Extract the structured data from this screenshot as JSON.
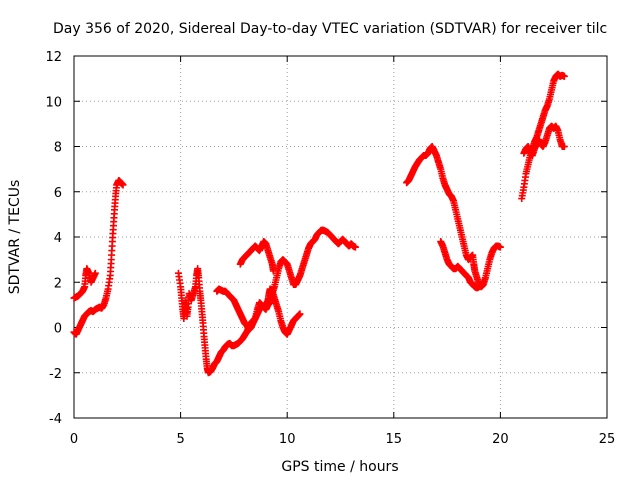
{
  "chart_data": {
    "type": "scatter",
    "title": "Day 356 of 2020, Sidereal Day-to-day VTEC variation (SDTVAR) for receiver tilc",
    "xlabel": "GPS time / hours",
    "ylabel": "SDTVAR / TECUs",
    "xlim": [
      0,
      25
    ],
    "ylim": [
      -4,
      12
    ],
    "xticks": [
      "0",
      "5",
      "10",
      "15",
      "20",
      "25"
    ],
    "yticks": [
      "-4",
      "-2",
      "0",
      "2",
      "4",
      "6",
      "8",
      "10",
      "12"
    ],
    "grid": true,
    "marker": "+",
    "color": "#ff0000",
    "series": [
      {
        "points": [
          [
            0.0,
            1.3
          ],
          [
            0.1,
            1.35
          ],
          [
            0.2,
            1.4
          ],
          [
            0.3,
            1.5
          ],
          [
            0.4,
            1.6
          ],
          [
            0.5,
            1.8
          ],
          [
            0.55,
            2.3
          ],
          [
            0.6,
            2.6
          ],
          [
            0.7,
            2.4
          ],
          [
            0.8,
            2.0
          ],
          [
            0.9,
            2.2
          ],
          [
            1.0,
            2.4
          ]
        ]
      },
      {
        "points": [
          [
            0.0,
            -0.2
          ],
          [
            0.1,
            -0.3
          ],
          [
            0.2,
            -0.1
          ],
          [
            0.3,
            0.1
          ],
          [
            0.4,
            0.3
          ],
          [
            0.5,
            0.5
          ],
          [
            0.6,
            0.6
          ],
          [
            0.7,
            0.7
          ],
          [
            0.8,
            0.75
          ],
          [
            0.9,
            0.7
          ],
          [
            1.0,
            0.8
          ],
          [
            1.1,
            0.85
          ],
          [
            1.2,
            0.9
          ],
          [
            1.3,
            0.85
          ],
          [
            1.4,
            1.0
          ],
          [
            1.5,
            1.3
          ],
          [
            1.6,
            1.7
          ],
          [
            1.7,
            2.3
          ],
          [
            1.75,
            3.0
          ],
          [
            1.8,
            3.8
          ],
          [
            1.85,
            4.5
          ],
          [
            1.9,
            5.2
          ],
          [
            1.95,
            5.8
          ],
          [
            2.0,
            6.3
          ],
          [
            2.1,
            6.5
          ],
          [
            2.2,
            6.4
          ],
          [
            2.3,
            6.3
          ]
        ]
      },
      {
        "points": [
          [
            4.9,
            2.4
          ],
          [
            5.0,
            1.8
          ],
          [
            5.05,
            1.3
          ],
          [
            5.1,
            0.8
          ],
          [
            5.15,
            0.4
          ],
          [
            5.2,
            0.8
          ],
          [
            5.25,
            1.2
          ],
          [
            5.3,
            0.5
          ],
          [
            5.35,
            0.9
          ],
          [
            5.4,
            1.5
          ],
          [
            5.5,
            1.2
          ],
          [
            5.6,
            1.5
          ],
          [
            5.7,
            1.8
          ],
          [
            5.75,
            2.3
          ],
          [
            5.8,
            2.6
          ],
          [
            5.85,
            2.2
          ],
          [
            5.9,
            1.6
          ],
          [
            5.95,
            1.2
          ],
          [
            6.0,
            0.7
          ],
          [
            6.05,
            0.2
          ],
          [
            6.1,
            -0.4
          ],
          [
            6.15,
            -0.9
          ],
          [
            6.2,
            -1.4
          ],
          [
            6.25,
            -1.8
          ],
          [
            6.3,
            -2.0
          ],
          [
            6.4,
            -1.95
          ],
          [
            6.5,
            -1.8
          ],
          [
            6.6,
            -1.6
          ],
          [
            6.7,
            -1.5
          ],
          [
            6.8,
            -1.3
          ],
          [
            6.9,
            -1.1
          ],
          [
            7.0,
            -1.0
          ],
          [
            7.1,
            -0.85
          ],
          [
            7.2,
            -0.75
          ],
          [
            7.3,
            -0.7
          ],
          [
            7.4,
            -0.8
          ],
          [
            7.5,
            -0.8
          ],
          [
            7.6,
            -0.75
          ],
          [
            7.7,
            -0.7
          ],
          [
            7.8,
            -0.6
          ],
          [
            7.9,
            -0.5
          ],
          [
            8.0,
            -0.35
          ],
          [
            8.1,
            -0.2
          ],
          [
            8.2,
            0.0
          ],
          [
            8.3,
            0.2
          ],
          [
            8.4,
            0.3
          ],
          [
            8.5,
            0.4
          ],
          [
            8.6,
            0.6
          ],
          [
            8.7,
            0.8
          ],
          [
            8.8,
            0.9
          ],
          [
            8.9,
            0.95
          ],
          [
            9.0,
            1.0
          ],
          [
            9.1,
            1.2
          ],
          [
            9.15,
            1.5
          ],
          [
            9.2,
            1.7
          ],
          [
            9.3,
            1.6
          ],
          [
            9.4,
            1.3
          ],
          [
            9.5,
            1.0
          ],
          [
            9.6,
            0.7
          ],
          [
            9.7,
            0.3
          ],
          [
            9.8,
            0.0
          ],
          [
            9.9,
            -0.2
          ],
          [
            10.0,
            -0.3
          ],
          [
            10.1,
            -0.1
          ],
          [
            10.2,
            0.1
          ],
          [
            10.3,
            0.3
          ],
          [
            10.4,
            0.4
          ],
          [
            10.5,
            0.5
          ],
          [
            10.6,
            0.6
          ]
        ]
      },
      {
        "points": [
          [
            6.7,
            1.6
          ],
          [
            6.8,
            1.7
          ],
          [
            6.9,
            1.65
          ],
          [
            7.0,
            1.6
          ],
          [
            7.1,
            1.6
          ],
          [
            7.2,
            1.5
          ],
          [
            7.3,
            1.4
          ],
          [
            7.4,
            1.3
          ],
          [
            7.5,
            1.2
          ],
          [
            7.6,
            1.0
          ],
          [
            7.7,
            0.8
          ],
          [
            7.8,
            0.6
          ],
          [
            7.9,
            0.4
          ],
          [
            8.0,
            0.2
          ],
          [
            8.1,
            0.1
          ],
          [
            8.2,
            -0.1
          ],
          [
            8.3,
            0.0
          ],
          [
            8.4,
            0.2
          ],
          [
            8.5,
            0.4
          ],
          [
            8.6,
            0.8
          ],
          [
            8.7,
            1.1
          ],
          [
            8.8,
            1.0
          ],
          [
            8.9,
            0.9
          ],
          [
            9.0,
            0.8
          ],
          [
            9.1,
            1.0
          ],
          [
            9.2,
            1.1
          ],
          [
            9.3,
            1.5
          ],
          [
            9.4,
            1.8
          ],
          [
            9.5,
            2.2
          ],
          [
            9.6,
            2.6
          ],
          [
            9.7,
            2.9
          ],
          [
            9.8,
            3.0
          ],
          [
            9.9,
            2.9
          ],
          [
            10.0,
            2.8
          ],
          [
            10.1,
            2.5
          ],
          [
            10.2,
            2.2
          ],
          [
            10.3,
            1.9
          ],
          [
            10.4,
            1.9
          ],
          [
            10.5,
            2.1
          ],
          [
            10.6,
            2.3
          ],
          [
            10.7,
            2.6
          ],
          [
            10.8,
            2.9
          ],
          [
            10.9,
            3.2
          ],
          [
            11.0,
            3.5
          ],
          [
            11.1,
            3.7
          ],
          [
            11.2,
            3.8
          ],
          [
            11.3,
            3.9
          ],
          [
            11.4,
            4.1
          ],
          [
            11.5,
            4.2
          ],
          [
            11.6,
            4.3
          ],
          [
            11.7,
            4.3
          ],
          [
            11.8,
            4.25
          ],
          [
            11.9,
            4.2
          ],
          [
            12.0,
            4.1
          ],
          [
            12.1,
            4.0
          ],
          [
            12.2,
            3.9
          ],
          [
            12.3,
            3.8
          ],
          [
            12.4,
            3.7
          ],
          [
            12.5,
            3.8
          ],
          [
            12.6,
            3.9
          ],
          [
            12.7,
            3.8
          ],
          [
            12.8,
            3.7
          ],
          [
            12.9,
            3.6
          ],
          [
            13.0,
            3.7
          ],
          [
            13.1,
            3.6
          ],
          [
            13.2,
            3.55
          ]
        ]
      },
      {
        "points": [
          [
            7.8,
            2.8
          ],
          [
            7.9,
            3.0
          ],
          [
            8.0,
            3.1
          ],
          [
            8.1,
            3.2
          ],
          [
            8.2,
            3.3
          ],
          [
            8.3,
            3.4
          ],
          [
            8.4,
            3.5
          ],
          [
            8.5,
            3.6
          ],
          [
            8.6,
            3.5
          ],
          [
            8.7,
            3.4
          ],
          [
            8.8,
            3.6
          ],
          [
            8.9,
            3.8
          ],
          [
            9.0,
            3.7
          ],
          [
            9.1,
            3.4
          ],
          [
            9.2,
            3.1
          ],
          [
            9.3,
            2.8
          ],
          [
            9.35,
            2.5
          ]
        ]
      },
      {
        "points": [
          [
            15.6,
            6.4
          ],
          [
            15.7,
            6.5
          ],
          [
            15.8,
            6.7
          ],
          [
            15.9,
            6.9
          ],
          [
            16.0,
            7.1
          ],
          [
            16.1,
            7.25
          ],
          [
            16.2,
            7.4
          ],
          [
            16.3,
            7.5
          ],
          [
            16.4,
            7.6
          ],
          [
            16.5,
            7.6
          ],
          [
            16.6,
            7.7
          ],
          [
            16.7,
            7.9
          ],
          [
            16.8,
            8.0
          ],
          [
            16.9,
            7.8
          ],
          [
            17.0,
            7.6
          ],
          [
            17.1,
            7.3
          ],
          [
            17.2,
            7.0
          ],
          [
            17.3,
            6.6
          ],
          [
            17.4,
            6.3
          ],
          [
            17.5,
            6.1
          ],
          [
            17.6,
            5.9
          ],
          [
            17.7,
            5.8
          ],
          [
            17.8,
            5.6
          ],
          [
            17.9,
            5.2
          ],
          [
            18.0,
            4.8
          ],
          [
            18.1,
            4.4
          ],
          [
            18.2,
            4.0
          ],
          [
            18.3,
            3.6
          ],
          [
            18.4,
            3.2
          ],
          [
            18.5,
            3.0
          ],
          [
            18.6,
            3.1
          ],
          [
            18.7,
            3.2
          ],
          [
            18.75,
            2.8
          ],
          [
            18.8,
            2.5
          ],
          [
            18.9,
            2.2
          ],
          [
            19.0,
            1.9
          ],
          [
            19.1,
            1.8
          ],
          [
            19.2,
            1.9
          ],
          [
            19.3,
            2.2
          ],
          [
            19.4,
            2.6
          ],
          [
            19.5,
            3.0
          ],
          [
            19.6,
            3.3
          ],
          [
            19.7,
            3.5
          ],
          [
            19.8,
            3.6
          ],
          [
            19.9,
            3.6
          ],
          [
            20.0,
            3.55
          ]
        ]
      },
      {
        "points": [
          [
            17.2,
            3.8
          ],
          [
            17.3,
            3.6
          ],
          [
            17.4,
            3.3
          ],
          [
            17.5,
            3.0
          ],
          [
            17.6,
            2.8
          ],
          [
            17.7,
            2.7
          ],
          [
            17.8,
            2.6
          ],
          [
            17.9,
            2.6
          ],
          [
            18.0,
            2.7
          ],
          [
            18.1,
            2.6
          ],
          [
            18.2,
            2.5
          ],
          [
            18.3,
            2.4
          ],
          [
            18.4,
            2.3
          ],
          [
            18.5,
            2.2
          ],
          [
            18.6,
            2.0
          ],
          [
            18.7,
            1.9
          ],
          [
            18.8,
            1.8
          ],
          [
            18.9,
            1.75
          ],
          [
            19.0,
            1.8
          ],
          [
            19.1,
            1.9
          ],
          [
            19.2,
            2.0
          ]
        ]
      },
      {
        "points": [
          [
            21.0,
            5.7
          ],
          [
            21.1,
            6.2
          ],
          [
            21.2,
            6.8
          ],
          [
            21.3,
            7.2
          ],
          [
            21.4,
            7.6
          ],
          [
            21.5,
            7.9
          ],
          [
            21.6,
            8.2
          ],
          [
            21.7,
            8.4
          ],
          [
            21.8,
            8.7
          ],
          [
            21.9,
            9.0
          ],
          [
            22.0,
            9.3
          ],
          [
            22.1,
            9.6
          ],
          [
            22.2,
            9.8
          ],
          [
            22.3,
            10.1
          ],
          [
            22.4,
            10.5
          ],
          [
            22.5,
            10.9
          ],
          [
            22.6,
            11.1
          ],
          [
            22.7,
            11.2
          ],
          [
            22.8,
            11.1
          ],
          [
            22.9,
            11.15
          ],
          [
            23.0,
            11.1
          ]
        ]
      },
      {
        "points": [
          [
            21.1,
            7.7
          ],
          [
            21.2,
            7.9
          ],
          [
            21.3,
            8.0
          ],
          [
            21.4,
            7.8
          ],
          [
            21.5,
            7.6
          ],
          [
            21.6,
            7.9
          ],
          [
            21.7,
            8.1
          ],
          [
            21.8,
            8.3
          ],
          [
            21.9,
            8.1
          ],
          [
            22.0,
            8.0
          ],
          [
            22.1,
            8.2
          ],
          [
            22.2,
            8.5
          ],
          [
            22.3,
            8.8
          ],
          [
            22.4,
            8.9
          ],
          [
            22.5,
            8.8
          ],
          [
            22.6,
            8.9
          ],
          [
            22.7,
            8.7
          ],
          [
            22.8,
            8.3
          ],
          [
            22.9,
            8.0
          ],
          [
            23.0,
            8.0
          ]
        ]
      }
    ]
  }
}
